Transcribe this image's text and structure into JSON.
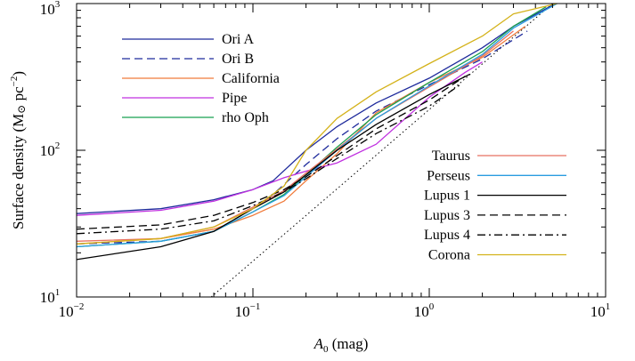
{
  "chart_data": {
    "type": "line",
    "xscale": "log",
    "yscale": "log",
    "xlim": [
      0.01,
      10
    ],
    "ylim": [
      10,
      1000
    ],
    "grid": false,
    "xlabel": {
      "italic": "A",
      "sub": "0",
      "rest": " (mag)"
    },
    "ylabel": {
      "main": "Surface density (M",
      "sun": "⊙",
      "mid": " pc",
      "sup": "−2",
      "end": ")"
    },
    "xticks": [
      {
        "value": 0.01,
        "base": "10",
        "exp": "−2"
      },
      {
        "value": 0.1,
        "base": "10",
        "exp": "−1"
      },
      {
        "value": 1,
        "base": "10",
        "exp": "0"
      },
      {
        "value": 10,
        "base": "10",
        "exp": "1"
      }
    ],
    "yticks": [
      {
        "value": 10,
        "base": "10",
        "exp": "1"
      },
      {
        "value": 100,
        "base": "10",
        "exp": "2"
      },
      {
        "value": 1000,
        "base": "10",
        "exp": "3"
      }
    ],
    "legend_left_position": "top-left",
    "legend_right_position": "bottom-right",
    "series": [
      {
        "name": "Ori A",
        "color": "#1f2b9c",
        "dash": "solid",
        "legend": "left",
        "x": [
          0.01,
          0.03,
          0.06,
          0.1,
          0.13,
          0.2,
          0.3,
          0.5,
          1,
          2,
          3,
          5.2
        ],
        "y": [
          37,
          40,
          46,
          54,
          62,
          100,
          145,
          210,
          310,
          500,
          700,
          1000
        ]
      },
      {
        "name": "Ori B",
        "color": "#1f2b9c",
        "dash": "dashed",
        "legend": "left",
        "x": [
          0.01,
          0.03,
          0.06,
          0.1,
          0.13,
          0.2,
          0.3,
          0.5,
          1,
          2,
          3.6
        ],
        "y": [
          23,
          24,
          28,
          40,
          50,
          80,
          120,
          185,
          280,
          420,
          650
        ]
      },
      {
        "name": "California",
        "color": "#f07a3a",
        "dash": "solid",
        "legend": "left",
        "x": [
          0.01,
          0.03,
          0.06,
          0.1,
          0.15,
          0.2,
          0.3,
          0.5,
          1,
          2,
          3.5
        ],
        "y": [
          23,
          25,
          29,
          36,
          45,
          62,
          95,
          180,
          290,
          430,
          700
        ]
      },
      {
        "name": "Pipe",
        "color": "#c030e0",
        "dash": "solid",
        "legend": "left",
        "x": [
          0.01,
          0.03,
          0.06,
          0.1,
          0.15,
          0.2,
          0.3,
          0.5,
          1,
          1.6,
          2
        ],
        "y": [
          36,
          39,
          45,
          54,
          65,
          72,
          82,
          110,
          230,
          340,
          400
        ]
      },
      {
        "name": "rho Oph",
        "color": "#18a050",
        "dash": "solid",
        "legend": "left",
        "x": [
          0.01,
          0.03,
          0.06,
          0.1,
          0.15,
          0.2,
          0.3,
          0.5,
          1,
          2,
          3,
          4.6
        ],
        "y": [
          22,
          24,
          28,
          38,
          50,
          68,
          105,
          175,
          290,
          470,
          700,
          950
        ]
      },
      {
        "name": "Taurus",
        "color": "#e87060",
        "dash": "solid",
        "legend": "right",
        "x": [
          0.01,
          0.03,
          0.06,
          0.1,
          0.15,
          0.2,
          0.3,
          0.5,
          1,
          2,
          3
        ],
        "y": [
          24,
          25,
          30,
          41,
          53,
          70,
          102,
          165,
          270,
          440,
          650
        ]
      },
      {
        "name": "Perseus",
        "color": "#2a9ce0",
        "dash": "solid",
        "legend": "right",
        "x": [
          0.01,
          0.03,
          0.06,
          0.1,
          0.15,
          0.2,
          0.3,
          0.5,
          1,
          2,
          3,
          5.3
        ],
        "y": [
          22,
          24,
          28,
          38,
          49,
          66,
          100,
          165,
          275,
          450,
          680,
          1000
        ]
      },
      {
        "name": "Lupus 1",
        "color": "#000000",
        "dash": "solid",
        "legend": "right",
        "x": [
          0.01,
          0.03,
          0.06,
          0.1,
          0.15,
          0.2,
          0.3,
          0.5,
          1,
          1.7
        ],
        "y": [
          18,
          22,
          28,
          40,
          52,
          68,
          100,
          150,
          240,
          330
        ]
      },
      {
        "name": "Lupus 3",
        "color": "#000000",
        "dash": "dashed",
        "legend": "right",
        "x": [
          0.01,
          0.03,
          0.06,
          0.1,
          0.15,
          0.2,
          0.3,
          0.5,
          1,
          1.6
        ],
        "y": [
          29,
          31,
          36,
          44,
          54,
          66,
          92,
          140,
          220,
          320
        ]
      },
      {
        "name": "Lupus 4",
        "color": "#000000",
        "dash": "dashdot",
        "legend": "right",
        "x": [
          0.01,
          0.03,
          0.06,
          0.1,
          0.15,
          0.2,
          0.3,
          0.5,
          1,
          1.5
        ],
        "y": [
          27,
          29,
          33,
          42,
          52,
          64,
          88,
          130,
          200,
          280
        ]
      },
      {
        "name": "Corona",
        "color": "#d4b21a",
        "dash": "solid",
        "legend": "right",
        "x": [
          0.01,
          0.03,
          0.06,
          0.1,
          0.15,
          0.2,
          0.3,
          0.5,
          1,
          2,
          3,
          5.3
        ],
        "y": [
          23,
          25,
          30,
          40,
          57,
          100,
          165,
          250,
          390,
          600,
          850,
          1000
        ]
      }
    ],
    "reference_line": {
      "style": "dotted",
      "color": "#000000",
      "x": [
        0.058,
        5.0
      ],
      "y": [
        10,
        1000
      ]
    }
  }
}
